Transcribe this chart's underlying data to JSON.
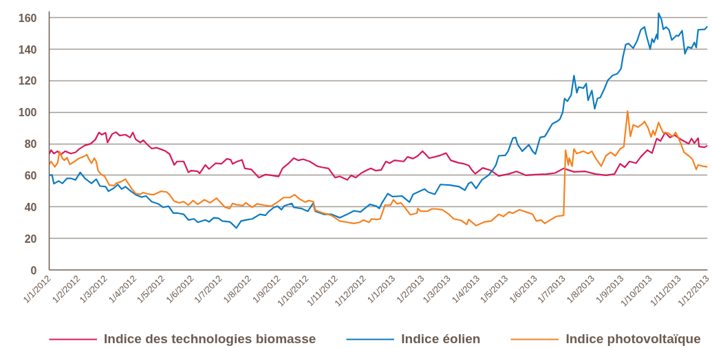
{
  "chart_data": {
    "type": "line",
    "xlim": [
      "2012-01-01",
      "2013-12-01"
    ],
    "xticks": [
      {
        "value": "2012-01-01",
        "label": "1/1/2012"
      },
      {
        "value": "2012-02-01",
        "label": "1/2/2012"
      },
      {
        "value": "2012-03-01",
        "label": "1/3/2012"
      },
      {
        "value": "2012-04-01",
        "label": "1/4/2012"
      },
      {
        "value": "2012-05-01",
        "label": "1/5/2012"
      },
      {
        "value": "2012-06-01",
        "label": "1/6/2012"
      },
      {
        "value": "2012-07-01",
        "label": "1/7/2012"
      },
      {
        "value": "2012-08-01",
        "label": "1/8/2012"
      },
      {
        "value": "2012-09-01",
        "label": "1/9/2012"
      },
      {
        "value": "2012-10-01",
        "label": "1/10/2012"
      },
      {
        "value": "2012-11-01",
        "label": "1/11/2012"
      },
      {
        "value": "2012-12-01",
        "label": "1/12/2012"
      },
      {
        "value": "2013-01-01",
        "label": "1/1/2013"
      },
      {
        "value": "2013-02-01",
        "label": "1/2/2013"
      },
      {
        "value": "2013-03-01",
        "label": "1/3/2013"
      },
      {
        "value": "2013-04-01",
        "label": "1/4/2013"
      },
      {
        "value": "2013-05-01",
        "label": "1/5/2013"
      },
      {
        "value": "2013-06-01",
        "label": "1/6/2013"
      },
      {
        "value": "2013-07-01",
        "label": "1/7/2013"
      },
      {
        "value": "2013-08-01",
        "label": "1/8/2013"
      },
      {
        "value": "2013-09-01",
        "label": "1/9/2013"
      },
      {
        "value": "2013-10-01",
        "label": "1/10/2013"
      },
      {
        "value": "2013-11-01",
        "label": "1/11/2013"
      },
      {
        "value": "2013-12-01",
        "label": "1/12/2013"
      }
    ],
    "ylim": [
      0,
      164
    ],
    "yticks": [
      0,
      20,
      40,
      60,
      80,
      100,
      120,
      140,
      160
    ],
    "grid": "y",
    "legend": "bottom",
    "line_style": "solid",
    "series": [
      {
        "name": "Indice des technologies biomasse",
        "color": "#d7195d",
        "x": [
          "2012-01-01",
          "2012-01-03",
          "2012-01-06",
          "2012-01-10",
          "2012-01-13",
          "2012-01-18",
          "2012-01-24",
          "2012-01-29",
          "2012-02-02",
          "2012-02-08",
          "2012-02-14",
          "2012-02-19",
          "2012-02-23",
          "2012-02-26",
          "2012-03-01",
          "2012-03-03",
          "2012-03-08",
          "2012-03-12",
          "2012-03-16",
          "2012-03-22",
          "2012-03-27",
          "2012-03-30",
          "2012-04-02",
          "2012-04-07",
          "2012-04-10",
          "2012-04-14",
          "2012-04-19",
          "2012-04-24",
          "2012-04-29",
          "2012-05-03",
          "2012-05-08",
          "2012-05-13",
          "2012-05-16",
          "2012-05-23",
          "2012-05-28",
          "2012-05-31",
          "2012-06-07",
          "2012-06-09",
          "2012-06-15",
          "2012-06-19",
          "2012-06-26",
          "2012-07-02",
          "2012-07-08",
          "2012-07-12",
          "2012-07-14",
          "2012-07-19",
          "2012-07-24",
          "2012-07-27",
          "2012-08-03",
          "2012-08-11",
          "2012-08-18",
          "2012-08-24",
          "2012-09-01",
          "2012-09-05",
          "2012-09-11",
          "2012-09-17",
          "2012-09-22",
          "2012-09-27",
          "2012-10-04",
          "2012-10-12",
          "2012-10-17",
          "2012-10-24",
          "2012-10-31",
          "2012-11-05",
          "2012-11-13",
          "2012-11-17",
          "2012-11-22",
          "2012-11-28",
          "2012-12-03",
          "2012-12-08",
          "2012-12-13",
          "2012-12-19",
          "2012-12-24",
          "2012-12-28",
          "2013-01-02",
          "2013-01-12",
          "2013-01-16",
          "2013-01-22",
          "2013-01-27",
          "2013-02-01",
          "2013-02-04",
          "2013-02-08",
          "2013-02-14",
          "2013-02-20",
          "2013-02-26",
          "2013-03-03",
          "2013-03-11",
          "2013-03-17",
          "2013-03-22",
          "2013-03-25",
          "2013-03-29",
          "2013-04-06",
          "2013-04-15",
          "2013-04-23",
          "2013-05-03",
          "2013-05-12",
          "2013-05-22",
          "2013-06-01",
          "2013-06-13",
          "2013-06-22",
          "2013-07-01",
          "2013-07-12",
          "2013-07-24",
          "2013-08-04",
          "2013-08-15",
          "2013-08-24",
          "2013-08-30",
          "2013-09-04",
          "2013-09-09",
          "2013-09-16",
          "2013-09-21",
          "2013-09-28",
          "2013-10-03",
          "2013-10-08",
          "2013-10-12",
          "2013-10-17",
          "2013-10-22",
          "2013-10-27",
          "2013-11-04",
          "2013-11-11",
          "2013-11-14",
          "2013-11-17",
          "2013-11-21",
          "2013-11-22",
          "2013-11-28",
          "2013-12-01"
        ],
        "values": [
          73.5,
          76,
          73.8,
          75.3,
          73,
          75.3,
          73.8,
          74.6,
          76.7,
          79,
          80,
          82.6,
          87.2,
          85.8,
          87,
          80.8,
          86.2,
          87.4,
          85.2,
          85.8,
          84,
          87.2,
          82.8,
          80.8,
          82.3,
          79.7,
          77,
          77.5,
          76.5,
          75.6,
          73.5,
          66.6,
          68.8,
          68.8,
          61.9,
          63,
          62.5,
          61.2,
          66.6,
          64,
          67.7,
          67.3,
          70.5,
          69.9,
          67.3,
          68.8,
          69.8,
          64.4,
          63.7,
          58.6,
          60.5,
          60,
          59.3,
          64.4,
          67.3,
          70.9,
          69.5,
          70.2,
          68.8,
          65.8,
          65.1,
          64.4,
          58.6,
          59.3,
          57.1,
          60,
          58.6,
          61.5,
          63,
          64.4,
          63,
          63.4,
          68.8,
          67.7,
          69.5,
          68.8,
          71.7,
          70.6,
          72.4,
          75.3,
          73.5,
          70.9,
          71.7,
          72.7,
          74.1,
          69.5,
          68,
          67.3,
          66.3,
          63.7,
          61,
          64.7,
          63,
          59.6,
          60.8,
          62.5,
          60,
          60.5,
          60.8,
          61.5,
          64.4,
          62.2,
          62.5,
          60.8,
          60,
          60.8,
          67.3,
          65.1,
          68.8,
          67.7,
          71.7,
          76,
          74.1,
          83.3,
          81.8,
          87.2,
          84,
          85.5,
          82.3,
          80,
          83.3,
          80.4,
          83.6,
          78.2,
          77.8,
          78.9
        ]
      },
      {
        "name": "Indice éolien",
        "color": "#0b7bc1",
        "x": [
          "2012-01-01",
          "2012-01-04",
          "2012-01-06",
          "2012-01-11",
          "2012-01-15",
          "2012-01-20",
          "2012-01-24",
          "2012-01-29",
          "2012-02-03",
          "2012-02-08",
          "2012-02-15",
          "2012-02-20",
          "2012-02-24",
          "2012-03-01",
          "2012-03-04",
          "2012-03-10",
          "2012-03-14",
          "2012-03-18",
          "2012-03-22",
          "2012-03-28",
          "2012-04-02",
          "2012-04-08",
          "2012-04-13",
          "2012-04-19",
          "2012-04-26",
          "2012-05-01",
          "2012-05-07",
          "2012-05-12",
          "2012-05-17",
          "2012-05-23",
          "2012-05-28",
          "2012-06-03",
          "2012-06-07",
          "2012-06-15",
          "2012-06-19",
          "2012-06-24",
          "2012-06-29",
          "2012-07-03",
          "2012-07-11",
          "2012-07-13",
          "2012-07-18",
          "2012-07-23",
          "2012-07-28",
          "2012-08-04",
          "2012-08-12",
          "2012-08-18",
          "2012-08-21",
          "2012-08-27",
          "2012-08-31",
          "2012-09-04",
          "2012-09-07",
          "2012-09-15",
          "2012-09-17",
          "2012-09-25",
          "2012-10-02",
          "2012-10-08",
          "2012-10-10",
          "2012-10-19",
          "2012-10-27",
          "2012-11-05",
          "2012-11-13",
          "2012-11-20",
          "2012-11-27",
          "2012-12-07",
          "2012-12-14",
          "2012-12-17",
          "2012-12-20",
          "2012-12-26",
          "2012-12-31",
          "2013-01-10",
          "2013-01-18",
          "2013-01-22",
          "2013-01-29",
          "2013-02-03",
          "2013-02-07",
          "2013-02-14",
          "2013-02-20",
          "2013-03-02",
          "2013-03-12",
          "2013-03-18",
          "2013-03-22",
          "2013-03-25",
          "2013-03-30",
          "2013-04-05",
          "2013-04-12",
          "2013-04-17",
          "2013-04-20",
          "2013-04-23",
          "2013-04-30",
          "2013-05-03",
          "2013-05-08",
          "2013-05-11",
          "2013-05-13",
          "2013-05-18",
          "2013-05-25",
          "2013-05-29",
          "2013-06-01",
          "2013-06-06",
          "2013-06-11",
          "2013-06-14",
          "2013-06-19",
          "2013-06-24",
          "2013-06-27",
          "2013-06-30",
          "2013-07-02",
          "2013-07-05",
          "2013-07-09",
          "2013-07-12",
          "2013-07-15",
          "2013-07-17",
          "2013-07-22",
          "2013-07-25",
          "2013-07-27",
          "2013-07-31",
          "2013-08-03",
          "2013-08-06",
          "2013-08-09",
          "2013-08-13",
          "2013-08-17",
          "2013-08-22",
          "2013-08-27",
          "2013-08-31",
          "2013-09-02",
          "2013-09-05",
          "2013-09-08",
          "2013-09-13",
          "2013-09-17",
          "2013-09-21",
          "2013-09-25",
          "2013-09-27",
          "2013-10-01",
          "2013-10-03",
          "2013-10-05",
          "2013-10-08",
          "2013-10-09",
          "2013-10-10",
          "2013-10-13",
          "2013-10-15",
          "2013-10-18",
          "2013-10-21",
          "2013-10-24",
          "2013-10-29",
          "2013-10-31",
          "2013-11-04",
          "2013-11-07",
          "2013-11-10",
          "2013-11-14",
          "2013-11-17",
          "2013-11-19",
          "2013-11-21",
          "2013-11-28",
          "2013-12-01"
        ],
        "values": [
          60,
          60.3,
          54.7,
          56.4,
          54.9,
          58.1,
          58.1,
          57.1,
          61.9,
          58.1,
          54.9,
          57.6,
          53.2,
          52.8,
          49.9,
          52,
          54.2,
          51.3,
          52.8,
          49.9,
          47.7,
          46.2,
          46.9,
          43.3,
          41.9,
          39.7,
          40.4,
          36,
          36,
          35.3,
          31.7,
          32.4,
          30.2,
          31.7,
          30.5,
          33.1,
          32.8,
          31,
          30.5,
          29.5,
          26.6,
          31,
          31.7,
          32.4,
          35.3,
          34.6,
          36.8,
          39.7,
          40.4,
          38.2,
          40.7,
          42.2,
          39.7,
          39,
          37.2,
          42.6,
          37.2,
          35.3,
          35.3,
          33.1,
          35.3,
          37.5,
          36.8,
          41.6,
          40.4,
          39,
          42.6,
          48.4,
          46.5,
          46.9,
          43,
          48,
          49.9,
          51.3,
          49.4,
          48,
          54.2,
          53.8,
          52.8,
          50.6,
          54.9,
          55.7,
          51.7,
          57.1,
          60,
          63.7,
          66.6,
          72.4,
          72.7,
          75.3,
          83.6,
          84,
          79.7,
          75.3,
          79.4,
          75.3,
          73.5,
          84,
          84.7,
          87.6,
          92.7,
          94.2,
          95.6,
          100,
          108.7,
          107,
          110.9,
          123.3,
          112.4,
          116,
          115.3,
          118.2,
          107.6,
          113.8,
          102.2,
          108.7,
          109.4,
          114.5,
          120.3,
          123.3,
          124.4,
          127.6,
          134.9,
          142.9,
          143.6,
          140.7,
          145.1,
          152.3,
          154.1,
          148.7,
          140,
          146.5,
          144.3,
          149.4,
          146.5,
          162.8,
          158.9,
          152.6,
          154,
          152.3,
          145.8,
          148.7,
          148.3,
          151.7,
          137.1,
          141.4,
          140.7,
          144.3,
          141,
          152.3,
          152.6,
          154.5
        ]
      },
      {
        "name": "Indice photovoltaïque",
        "color": "#f58220",
        "x": [
          "2012-01-01",
          "2012-01-03",
          "2012-01-07",
          "2012-01-10",
          "2012-01-12",
          "2012-01-15",
          "2012-01-17",
          "2012-01-20",
          "2012-01-23",
          "2012-01-28",
          "2012-02-02",
          "2012-02-06",
          "2012-02-10",
          "2012-02-13",
          "2012-02-15",
          "2012-02-18",
          "2012-02-20",
          "2012-02-22",
          "2012-02-25",
          "2012-02-29",
          "2012-03-05",
          "2012-03-10",
          "2012-03-12",
          "2012-03-18",
          "2012-03-22",
          "2012-03-25",
          "2012-03-29",
          "2012-04-02",
          "2012-04-07",
          "2012-04-10",
          "2012-04-16",
          "2012-04-21",
          "2012-04-29",
          "2012-05-05",
          "2012-05-08",
          "2012-05-13",
          "2012-05-18",
          "2012-05-23",
          "2012-05-28",
          "2012-06-02",
          "2012-06-07",
          "2012-06-14",
          "2012-06-20",
          "2012-06-27",
          "2012-07-01",
          "2012-07-06",
          "2012-07-11",
          "2012-07-14",
          "2012-07-18",
          "2012-07-25",
          "2012-07-28",
          "2012-08-04",
          "2012-08-09",
          "2012-08-16",
          "2012-08-24",
          "2012-09-01",
          "2012-09-06",
          "2012-09-13",
          "2012-09-18",
          "2012-09-22",
          "2012-09-29",
          "2012-10-03",
          "2012-10-08",
          "2012-10-09",
          "2012-10-17",
          "2012-10-27",
          "2012-11-05",
          "2012-11-13",
          "2012-11-20",
          "2012-11-26",
          "2012-11-30",
          "2012-12-06",
          "2012-12-09",
          "2012-12-14",
          "2012-12-18",
          "2012-12-23",
          "2012-12-29",
          "2013-01-01",
          "2013-01-05",
          "2013-01-09",
          "2013-01-14",
          "2013-01-19",
          "2013-01-26",
          "2013-01-27",
          "2013-01-30",
          "2013-02-06",
          "2013-02-11",
          "2013-02-15",
          "2013-02-22",
          "2013-03-01",
          "2013-03-06",
          "2013-03-14",
          "2013-03-20",
          "2013-03-22",
          "2013-03-30",
          "2013-04-08",
          "2013-04-15",
          "2013-04-23",
          "2013-04-28",
          "2013-05-04",
          "2013-05-08",
          "2013-05-15",
          "2013-05-22",
          "2013-05-29",
          "2013-06-02",
          "2013-06-07",
          "2013-06-11",
          "2013-06-15",
          "2013-06-23",
          "2013-07-01",
          "2013-07-03",
          "2013-07-06",
          "2013-07-07",
          "2013-07-10",
          "2013-07-12",
          "2013-07-15",
          "2013-07-22",
          "2013-07-27",
          "2013-07-31",
          "2013-08-04",
          "2013-08-10",
          "2013-08-15",
          "2013-08-20",
          "2013-08-25",
          "2013-08-30",
          "2013-09-03",
          "2013-09-07",
          "2013-09-10",
          "2013-09-13",
          "2013-09-18",
          "2013-09-23",
          "2013-09-25",
          "2013-09-29",
          "2013-10-02",
          "2013-10-04",
          "2013-10-06",
          "2013-10-10",
          "2013-10-12",
          "2013-10-15",
          "2013-10-20",
          "2013-10-25",
          "2013-10-28",
          "2013-11-01",
          "2013-11-06",
          "2013-11-11",
          "2013-11-15",
          "2013-11-19",
          "2013-11-21",
          "2013-11-26",
          "2013-12-01"
        ],
        "values": [
          66.9,
          68.8,
          65.4,
          68,
          75,
          70.9,
          69.5,
          71.2,
          66.9,
          68.8,
          70.9,
          71.7,
          73.1,
          69.5,
          67.7,
          70.9,
          68.8,
          62.9,
          60.8,
          59.3,
          53.8,
          53.5,
          54.9,
          56.1,
          57.6,
          54.9,
          51.3,
          48.4,
          48,
          49.1,
          48,
          47.7,
          49.9,
          49.4,
          47.7,
          43.6,
          42.6,
          43.3,
          41.1,
          44,
          41.6,
          44.5,
          42.6,
          45.5,
          43,
          39.7,
          39,
          42.2,
          41.4,
          40.8,
          42.6,
          39.7,
          41.9,
          41.1,
          40.4,
          43.6,
          45.9,
          45.9,
          47.7,
          45.5,
          43,
          44,
          43.3,
          38.2,
          36.3,
          34.6,
          31,
          30.2,
          29.5,
          30.2,
          31.7,
          30.2,
          32.4,
          32,
          32.4,
          41.1,
          41.1,
          44.5,
          41.9,
          42.6,
          39,
          35,
          36,
          39,
          37.2,
          37.2,
          38.7,
          38.7,
          38.2,
          35.3,
          32.4,
          31.4,
          28.8,
          32,
          28.1,
          30.5,
          31,
          35.3,
          33.9,
          36.8,
          36,
          38.2,
          36.8,
          35.3,
          31,
          31.7,
          29.5,
          31,
          33.9,
          34.6,
          76,
          66.6,
          70.9,
          65.8,
          76.7,
          73.8,
          75.3,
          73.8,
          75.3,
          70.9,
          65.8,
          72.4,
          74.6,
          72.4,
          76.7,
          78.2,
          100.7,
          84.7,
          92,
          90.6,
          92.7,
          94.2,
          89.8,
          84.3,
          88.4,
          85.5,
          93.5,
          90.6,
          86.9,
          86.9,
          84.7,
          87.2,
          82.6,
          74.6,
          72.4,
          70.2,
          63.7,
          66.6,
          65.8,
          65.4
        ]
      }
    ]
  }
}
